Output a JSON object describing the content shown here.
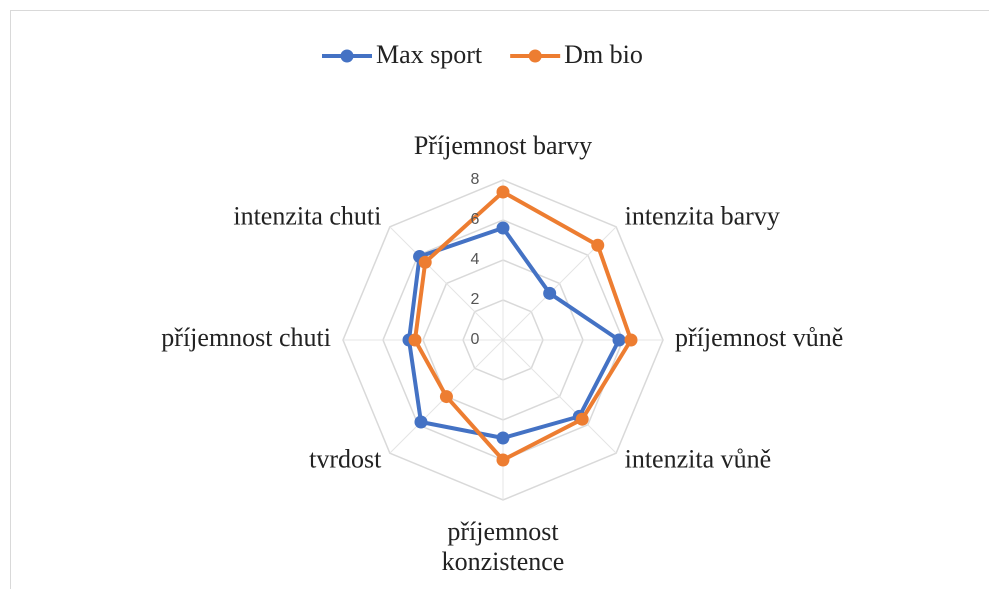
{
  "chart_data": {
    "type": "radar",
    "categories": [
      "Příjemnost barvy",
      "intenzita barvy",
      "příjemnost vůně",
      "intenzita vůně",
      "příjemnost konzistence",
      "tvrdost",
      "příjemnost chuti",
      "intenzita chuti"
    ],
    "series": [
      {
        "name": "Max sport",
        "color": "#4472c4",
        "values": [
          5.6,
          3.3,
          5.8,
          5.4,
          4.9,
          5.8,
          4.7,
          5.9
        ]
      },
      {
        "name": "Dm bio",
        "color": "#ed7d31",
        "values": [
          7.4,
          6.7,
          6.4,
          5.6,
          6.0,
          4.0,
          4.4,
          5.5
        ]
      }
    ],
    "ylim": [
      0,
      8
    ],
    "yticks": [
      0,
      2,
      4,
      6,
      8
    ],
    "grid": true,
    "legend": "top"
  }
}
